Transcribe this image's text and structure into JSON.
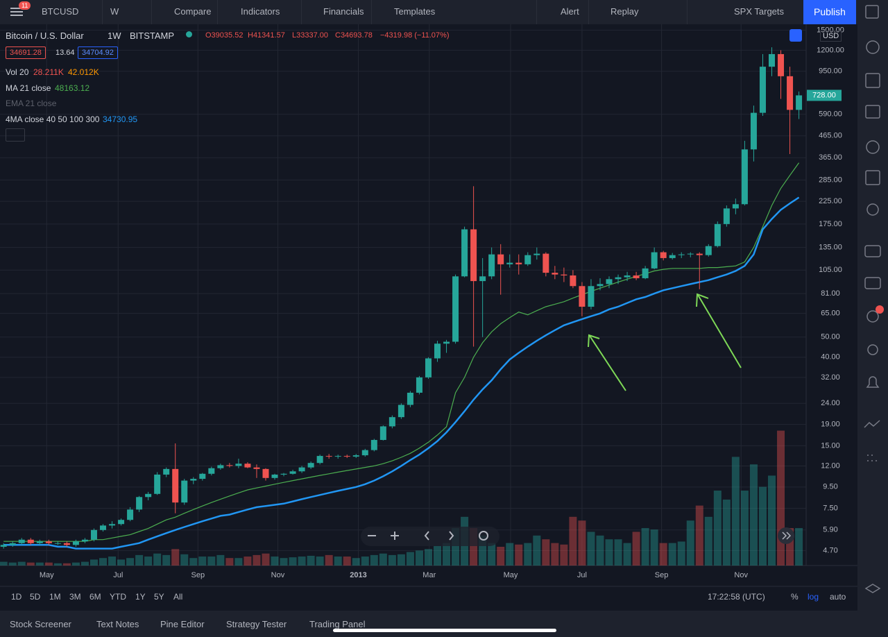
{
  "toolbar": {
    "badge": "11",
    "symbol": "BTCUSD",
    "interval": "W",
    "items": [
      "Compare",
      "Indicators",
      "Financials",
      "Templates",
      "Alert",
      "Replay"
    ],
    "layout": "SPX Targets",
    "publish": "Publish"
  },
  "legend": {
    "title": "Bitcoin / U.S. Dollar",
    "interval": "1W",
    "exchange": "BITSTAMP",
    "ohlc": [
      "O39035.52",
      "H41341.57",
      "L33337.00",
      "C34693.78"
    ],
    "change": "−4319.98 (−11.07%)",
    "bid": "34691.28",
    "spread": "13.64",
    "ask": "34704.92",
    "vol_values": [
      "28.211K",
      "42.012K"
    ],
    "ma_value": "48163.12",
    "ema": "EMA 21 close",
    "ma4_value": "34730.95"
  },
  "chart_data": {
    "type": "candlestick",
    "log_scale": true,
    "grid": true,
    "currency": "USD",
    "last_label": "728.00",
    "up_color": "#26a69a",
    "down_color": "#ef5350",
    "xlim": [
      -0.4,
      88.8
    ],
    "xticks": [
      {
        "value": 4.76,
        "label": "May"
      },
      {
        "value": 12.67,
        "label": "Jul"
      },
      {
        "value": 21.5,
        "label": "Sep"
      },
      {
        "value": 30.34,
        "label": "Nov"
      },
      {
        "value": 39.25,
        "label": "2013"
      },
      {
        "value": 47.1,
        "label": "Mar"
      },
      {
        "value": 56.1,
        "label": "May"
      },
      {
        "value": 64.0,
        "label": "Jul"
      },
      {
        "value": 72.8,
        "label": "Sep"
      },
      {
        "value": 81.6,
        "label": "Nov"
      }
    ],
    "ylim": [
      4.2,
      1600
    ],
    "yticks": [
      {
        "value": 1500,
        "label": "1500.00"
      },
      {
        "value": 1200,
        "label": "1200.00"
      },
      {
        "value": 950,
        "label": "950.00"
      },
      {
        "value": 590,
        "label": "590.00"
      },
      {
        "value": 465,
        "label": "465.00"
      },
      {
        "value": 365,
        "label": "365.00"
      },
      {
        "value": 285,
        "label": "285.00"
      },
      {
        "value": 225,
        "label": "225.00"
      },
      {
        "value": 175,
        "label": "175.00"
      },
      {
        "value": 135,
        "label": "135.00"
      },
      {
        "value": 105,
        "label": "105.00"
      },
      {
        "value": 81,
        "label": "81.00"
      },
      {
        "value": 65,
        "label": "65.00"
      },
      {
        "value": 50,
        "label": "50.00"
      },
      {
        "value": 40,
        "label": "40.00"
      },
      {
        "value": 32,
        "label": "32.00"
      },
      {
        "value": 24,
        "label": "24.00"
      },
      {
        "value": 19,
        "label": "19.00"
      },
      {
        "value": 15,
        "label": "15.00"
      },
      {
        "value": 12,
        "label": "12.00"
      },
      {
        "value": 9.5,
        "label": "9.50"
      },
      {
        "value": 7.5,
        "label": "7.50"
      },
      {
        "value": 5.9,
        "label": "5.90"
      },
      {
        "value": 4.7,
        "label": "4.70"
      }
    ],
    "ohlc": [
      [
        4.9,
        5.1,
        4.8,
        5.0
      ],
      [
        5.0,
        5.2,
        4.9,
        5.1
      ],
      [
        5.1,
        5.4,
        5.0,
        5.3
      ],
      [
        5.3,
        5.4,
        5.0,
        5.1
      ],
      [
        5.1,
        5.3,
        5.0,
        5.2
      ],
      [
        5.2,
        5.3,
        5.0,
        5.1
      ],
      [
        5.1,
        5.2,
        5.0,
        5.1
      ],
      [
        5.1,
        5.2,
        4.9,
        5.0
      ],
      [
        5.0,
        5.3,
        4.9,
        5.2
      ],
      [
        5.2,
        5.4,
        5.1,
        5.3
      ],
      [
        5.3,
        6.0,
        5.2,
        5.9
      ],
      [
        5.9,
        6.3,
        5.8,
        6.2
      ],
      [
        6.2,
        6.5,
        6.0,
        6.3
      ],
      [
        6.3,
        6.7,
        6.2,
        6.6
      ],
      [
        6.6,
        7.6,
        6.5,
        7.4
      ],
      [
        7.4,
        8.6,
        7.2,
        8.5
      ],
      [
        8.5,
        9.0,
        8.2,
        8.8
      ],
      [
        8.8,
        11.2,
        8.7,
        10.9
      ],
      [
        10.9,
        11.8,
        10.6,
        11.6
      ],
      [
        11.6,
        15.4,
        7.1,
        8.0
      ],
      [
        8.0,
        10.4,
        7.8,
        10.2
      ],
      [
        10.2,
        10.6,
        9.8,
        10.4
      ],
      [
        10.4,
        11.1,
        10.2,
        11.0
      ],
      [
        11.0,
        11.9,
        10.8,
        11.7
      ],
      [
        11.7,
        12.3,
        11.5,
        12.1
      ],
      [
        12.1,
        12.4,
        11.8,
        12.0
      ],
      [
        12.0,
        13.0,
        11.7,
        12.3
      ],
      [
        12.3,
        12.5,
        11.7,
        11.8
      ],
      [
        11.8,
        12.2,
        10.5,
        11.6
      ],
      [
        11.6,
        11.7,
        10.2,
        10.5
      ],
      [
        10.5,
        11.0,
        10.3,
        10.9
      ],
      [
        10.9,
        11.1,
        10.7,
        11.0
      ],
      [
        11.0,
        11.5,
        10.9,
        11.3
      ],
      [
        11.3,
        12.0,
        11.1,
        11.8
      ],
      [
        11.8,
        12.6,
        11.6,
        12.4
      ],
      [
        12.4,
        13.6,
        12.2,
        13.4
      ],
      [
        13.4,
        13.7,
        13.0,
        13.3
      ],
      [
        13.3,
        13.6,
        13.0,
        13.4
      ],
      [
        13.4,
        13.6,
        13.1,
        13.3
      ],
      [
        13.3,
        13.7,
        13.1,
        13.5
      ],
      [
        13.5,
        14.5,
        13.3,
        14.3
      ],
      [
        14.3,
        16.2,
        14.1,
        16.0
      ],
      [
        16.0,
        18.8,
        15.9,
        18.6
      ],
      [
        18.6,
        21.0,
        18.2,
        20.6
      ],
      [
        20.6,
        24.0,
        20.2,
        23.6
      ],
      [
        23.6,
        27.5,
        23.0,
        27.0
      ],
      [
        27.0,
        32.5,
        26.5,
        32.0
      ],
      [
        32.0,
        40.0,
        31.5,
        39.5
      ],
      [
        39.5,
        48.0,
        38.0,
        46.5
      ],
      [
        46.5,
        48.5,
        42.0,
        47.5
      ],
      [
        47.5,
        100,
        46.5,
        98
      ],
      [
        98,
        170,
        97,
        165
      ],
      [
        165,
        266,
        45,
        93
      ],
      [
        93,
        120,
        50,
        98
      ],
      [
        98,
        135,
        95,
        125
      ],
      [
        125,
        140,
        80,
        112
      ],
      [
        112,
        125,
        108,
        114
      ],
      [
        114,
        125,
        100,
        112
      ],
      [
        112,
        128,
        110,
        124
      ],
      [
        124,
        135,
        118,
        126
      ],
      [
        126,
        128,
        98,
        102
      ],
      [
        102,
        110,
        95,
        100
      ],
      [
        100,
        108,
        92,
        99
      ],
      [
        99,
        105,
        86,
        88
      ],
      [
        88,
        92,
        63,
        70
      ],
      [
        70,
        95,
        68,
        88
      ],
      [
        88,
        96,
        84,
        90
      ],
      [
        90,
        98,
        86,
        95
      ],
      [
        95,
        100,
        90,
        97
      ],
      [
        97,
        103,
        93,
        99
      ],
      [
        99,
        103,
        94,
        96
      ],
      [
        96,
        110,
        95,
        107
      ],
      [
        107,
        135,
        106,
        128
      ],
      [
        128,
        130,
        117,
        120
      ],
      [
        120,
        127,
        118,
        124
      ],
      [
        124,
        128,
        120,
        125
      ],
      [
        125,
        128,
        121,
        126
      ],
      [
        126,
        128,
        85,
        124
      ],
      [
        124,
        140,
        122,
        137
      ],
      [
        137,
        180,
        135,
        175
      ],
      [
        175,
        215,
        170,
        208
      ],
      [
        208,
        232,
        195,
        218
      ],
      [
        218,
        440,
        215,
        400
      ],
      [
        400,
        650,
        350,
        600
      ],
      [
        600,
        1150,
        580,
        1000
      ],
      [
        1000,
        1240,
        900,
        1150
      ],
      [
        1150,
        1200,
        700,
        900
      ],
      [
        900,
        1000,
        380,
        620
      ],
      [
        620,
        760,
        560,
        728
      ]
    ],
    "series": [
      {
        "name": "MA 21 close",
        "color": "#4caf50",
        "width": 1.2,
        "values": [
          5.2,
          5.2,
          5.2,
          5.2,
          5.2,
          5.2,
          5.2,
          5.2,
          5.2,
          5.2,
          5.3,
          5.3,
          5.4,
          5.5,
          5.6,
          5.8,
          6.0,
          6.3,
          6.6,
          6.8,
          7.1,
          7.4,
          7.7,
          8.0,
          8.3,
          8.6,
          8.9,
          9.2,
          9.4,
          9.6,
          9.8,
          10.0,
          10.2,
          10.4,
          10.6,
          10.8,
          11.0,
          11.2,
          11.4,
          11.6,
          11.8,
          12.0,
          12.3,
          12.7,
          13.2,
          13.8,
          14.6,
          15.6,
          16.9,
          18.5,
          27,
          32,
          40,
          47,
          53,
          58,
          62,
          66,
          64,
          67,
          70,
          72,
          74,
          77,
          80,
          83,
          86,
          89,
          92,
          95,
          98,
          101,
          104,
          106,
          107,
          107,
          107,
          107,
          108,
          108,
          109,
          110,
          115,
          135,
          170,
          215,
          260,
          300,
          345
        ]
      },
      {
        "name": "4MA close 40 50 100 300",
        "color": "#2196f3",
        "width": 2.5,
        "values": [
          5.0,
          5.0,
          5.0,
          5.0,
          5.0,
          5.0,
          4.9,
          4.9,
          4.8,
          4.8,
          4.8,
          4.8,
          4.8,
          4.9,
          5.0,
          5.1,
          5.3,
          5.5,
          5.7,
          5.9,
          6.1,
          6.3,
          6.5,
          6.7,
          6.9,
          7.0,
          7.2,
          7.4,
          7.6,
          7.7,
          7.8,
          7.9,
          8.1,
          8.3,
          8.5,
          8.7,
          8.9,
          9.1,
          9.3,
          9.5,
          9.8,
          10.2,
          10.7,
          11.3,
          12.0,
          12.8,
          13.6,
          14.6,
          15.8,
          17.4,
          19.5,
          22,
          25,
          28,
          31,
          35,
          39,
          42,
          45,
          48,
          51,
          54,
          57,
          59,
          61,
          63,
          65,
          68,
          70,
          73,
          76,
          78,
          81,
          84,
          86,
          88,
          90,
          92,
          94,
          97,
          100,
          104,
          110,
          125,
          165,
          185,
          205,
          220,
          235
        ]
      }
    ],
    "volume": {
      "name": "Vol 20",
      "values": [
        5,
        4,
        5,
        4,
        4,
        4,
        3,
        3,
        4,
        5,
        8,
        10,
        12,
        8,
        10,
        14,
        12,
        16,
        14,
        22,
        15,
        10,
        12,
        12,
        14,
        10,
        10,
        12,
        14,
        16,
        12,
        10,
        11,
        12,
        13,
        12,
        14,
        12,
        12,
        10,
        12,
        14,
        16,
        14,
        15,
        18,
        20,
        22,
        26,
        30,
        50,
        65,
        50,
        40,
        30,
        25,
        30,
        28,
        30,
        40,
        35,
        30,
        28,
        65,
        60,
        45,
        40,
        35,
        35,
        30,
        45,
        50,
        48,
        30,
        30,
        32,
        60,
        80,
        65,
        100,
        88,
        145,
        100,
        135,
        105,
        120,
        180,
        50,
        50
      ]
    }
  },
  "bottom": {
    "ranges": [
      "1D",
      "5D",
      "1M",
      "3M",
      "6M",
      "YTD",
      "1Y",
      "5Y",
      "All"
    ],
    "clock": "17:22:58 (UTC)",
    "options": [
      "%",
      "log",
      "auto"
    ]
  },
  "tabs": [
    "Stock Screener",
    "Text Notes",
    "Pine Editor",
    "Strategy Tester",
    "Trading Panel"
  ]
}
